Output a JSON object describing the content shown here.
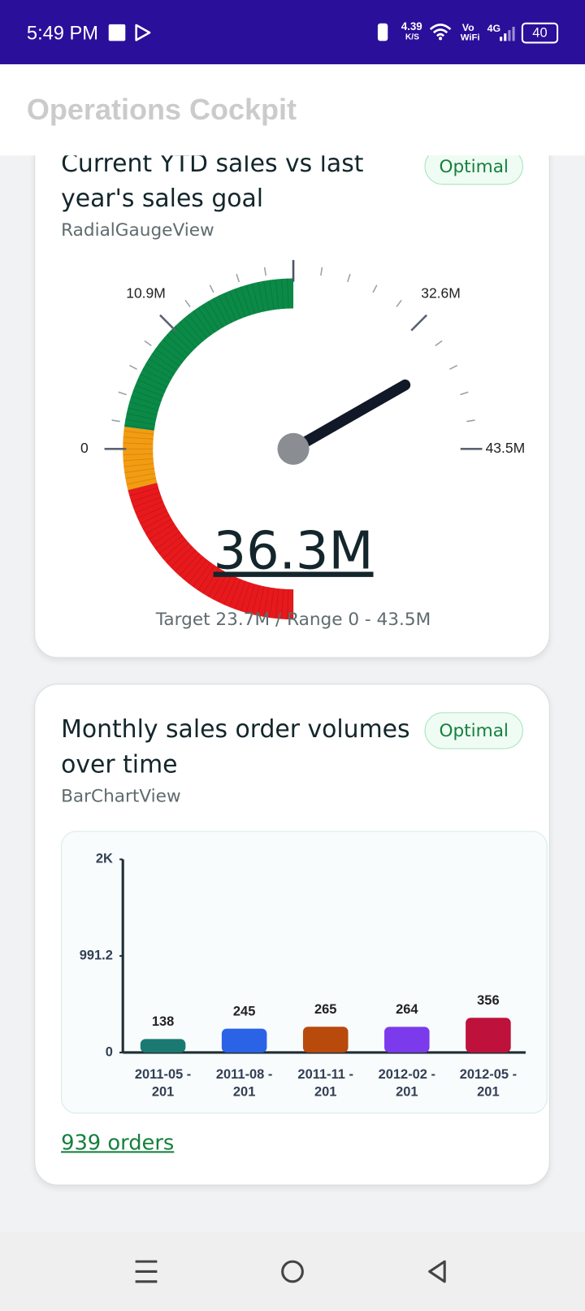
{
  "status_bar": {
    "time": "5:49 PM",
    "speed": "4.39",
    "speed_unit": "K/S",
    "volte": "Vo",
    "wifi": "WiFi",
    "network": "4G",
    "battery": "40"
  },
  "app_bar": {
    "title": "Operations Cockpit"
  },
  "cards": [
    {
      "title": "Current YTD sales vs last year's sales goal",
      "status": "Optimal",
      "subtitle": "RadialGaugeView",
      "gauge": {
        "value": 36.3,
        "value_label": "36.3M",
        "range": [
          0,
          43.5
        ],
        "ticks": [
          0,
          {
            "value": 10.9,
            "label": "10.9M"
          },
          {
            "value": 32.6,
            "label": "32.6M"
          },
          {
            "value": 43.5,
            "label": "43.5M"
          }
        ]
      },
      "footer": "Target 23.7M / Range 0 - 43.5M"
    },
    {
      "title": "Monthly sales order volumes over time",
      "status": "Optimal",
      "subtitle": "BarChartView",
      "chart_data": {
        "type": "bar",
        "categories": [
          [
            "2011-05 -",
            "201"
          ],
          [
            "2011-08 -",
            "201"
          ],
          [
            "2011-11 -",
            "201"
          ],
          [
            "2012-02 -",
            "201"
          ],
          [
            "2012-05 -",
            "201"
          ]
        ],
        "values": [
          138,
          245,
          265,
          264,
          356
        ],
        "colors": [
          "#1a7a72",
          "#2a63e6",
          "#b84a0c",
          "#7c3aed",
          "#be123c"
        ],
        "ylim": [
          0,
          1982.4
        ],
        "yticks": [
          0,
          991.2,
          {
            "value": 1982.4,
            "label": "2K"
          }
        ]
      },
      "link": "939 orders"
    }
  ]
}
